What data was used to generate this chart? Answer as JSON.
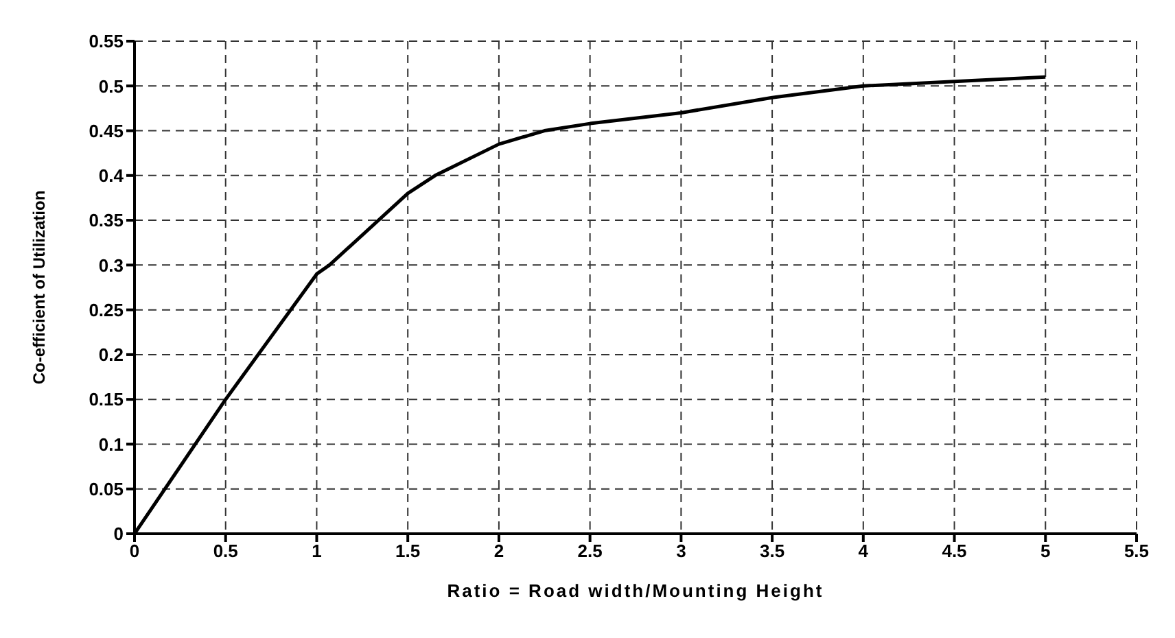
{
  "chart_data": {
    "type": "line",
    "xlabel": "Ratio = Road width/Mounting Height",
    "ylabel": "Co-efficient of Utilization",
    "x": [
      0,
      0.5,
      1,
      1.07,
      1.5,
      1.65,
      2,
      2.25,
      2.5,
      3,
      3.5,
      4,
      4.5,
      5
    ],
    "series": [
      {
        "color": "#000000",
        "values": [
          0,
          0.15,
          0.29,
          0.3,
          0.38,
          0.4,
          0.435,
          0.45,
          0.458,
          0.47,
          0.487,
          0.5,
          0.505,
          0.51
        ]
      }
    ],
    "xlim": [
      0,
      5.5
    ],
    "xticks": [
      0,
      0.5,
      1,
      1.5,
      2,
      2.5,
      3,
      3.5,
      4,
      4.5,
      5,
      5.5
    ],
    "ylim": [
      0,
      0.55
    ],
    "yticks": [
      0,
      0.05,
      0.1,
      0.15,
      0.2,
      0.25,
      0.3,
      0.35,
      0.4,
      0.45,
      0.5,
      0.55
    ],
    "grid": true,
    "marker": "none",
    "line_style": "solid"
  }
}
